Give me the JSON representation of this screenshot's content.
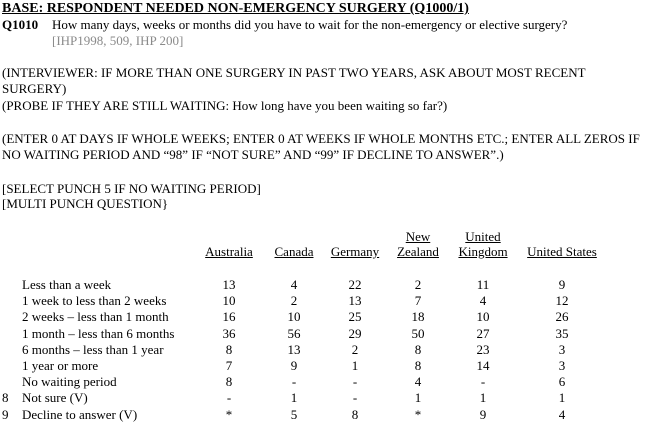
{
  "header": {
    "base": "BASE: RESPONDENT NEEDED NON-EMERGENCY SURGERY (Q1000/1)",
    "qid": "Q1010",
    "question": "How many days, weeks or months did you have to wait for the non-emergency or elective surgery?",
    "ref": "[IHP1998, 509, IHP 200]"
  },
  "instructions": {
    "interviewer": "(INTERVIEWER:  IF MORE THAN ONE SURGERY IN PAST TWO YEARS, ASK ABOUT MOST RECENT SURGERY)",
    "probe": "(PROBE IF THEY ARE STILL WAITING: How long have you been waiting so far?)",
    "enter": "(ENTER 0 AT DAYS IF WHOLE WEEKS; ENTER 0 AT WEEKS IF WHOLE MONTHS ETC.; ENTER ALL ZEROS IF NO WAITING PERIOD AND “98” IF “NOT SURE” AND “99” IF DECLINE TO ANSWER”.)",
    "select": "[SELECT PUNCH 5 IF NO WAITING PERIOD]",
    "multi": "[MULTI PUNCH QUESTION}"
  },
  "table": {
    "columns": [
      {
        "line1": "",
        "line2": "Australia"
      },
      {
        "line1": "",
        "line2": "Canada"
      },
      {
        "line1": "",
        "line2": "Germany"
      },
      {
        "line1": "New",
        "line2": "Zealand"
      },
      {
        "line1": "United",
        "line2": "Kingdom"
      },
      {
        "line1": "",
        "line2": "United States"
      }
    ],
    "rows": [
      {
        "code": "",
        "label": "Less than a week",
        "values": [
          "13",
          "4",
          "22",
          "2",
          "11",
          "9"
        ]
      },
      {
        "code": "",
        "label": "1 week to less than 2 weeks",
        "values": [
          "10",
          "2",
          "13",
          "7",
          "4",
          "12"
        ]
      },
      {
        "code": "",
        "label": "2 weeks – less than 1 month",
        "values": [
          "16",
          "10",
          "25",
          "18",
          "10",
          "26"
        ]
      },
      {
        "code": "",
        "label": "1 month – less than 6 months",
        "values": [
          "36",
          "56",
          "29",
          "50",
          "27",
          "35"
        ]
      },
      {
        "code": "",
        "label": "6 months – less than 1 year",
        "values": [
          "8",
          "13",
          "2",
          "8",
          "23",
          "3"
        ]
      },
      {
        "code": "",
        "label": "1 year or more",
        "values": [
          "7",
          "9",
          "1",
          "8",
          "14",
          "3"
        ]
      },
      {
        "code": "",
        "label": "No waiting period",
        "values": [
          "8",
          "-",
          "-",
          "4",
          "-",
          "6"
        ]
      },
      {
        "code": "8",
        "label": "Not sure (V)",
        "values": [
          "-",
          "1",
          "-",
          "1",
          "1",
          "1"
        ]
      },
      {
        "code": "9",
        "label": "Decline to answer (V)",
        "values": [
          "*",
          "5",
          "8",
          "*",
          "9",
          "4"
        ]
      }
    ]
  }
}
